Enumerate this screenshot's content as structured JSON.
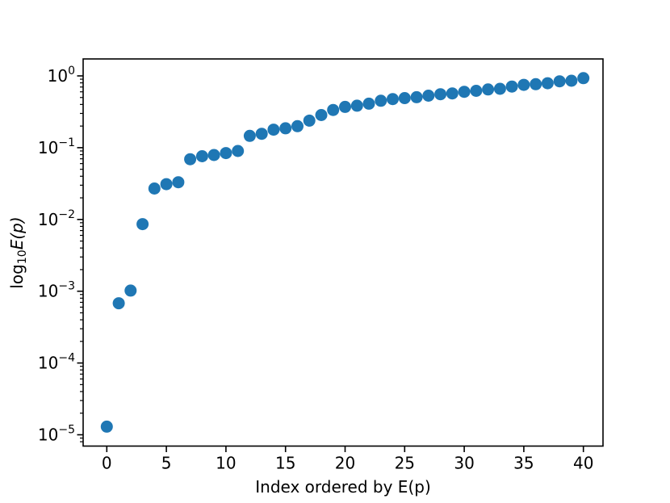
{
  "figure": {
    "background": "#ffffff"
  },
  "chart_data": {
    "type": "scatter",
    "title": "",
    "xlabel": "Index ordered by E(p)",
    "ylabel": {
      "prefix": "log",
      "subscript": "10",
      "math": "E(p)"
    },
    "legend": null,
    "grid": false,
    "marker_color": "#1f77b4",
    "axis_color": "#000000",
    "x_scale": "linear",
    "y_scale": "log",
    "xlim": [
      -2,
      41.65
    ],
    "ylim": [
      7e-06,
      1.72
    ],
    "x_ticks": [
      0,
      5,
      10,
      15,
      20,
      25,
      30,
      35,
      40
    ],
    "x_tick_labels": [
      "0",
      "5",
      "10",
      "15",
      "20",
      "25",
      "30",
      "35",
      "40"
    ],
    "y_tick_base": "10",
    "y_tick_exponents": [
      "0",
      "−1",
      "−2",
      "−3",
      "−4",
      "−5"
    ],
    "y_tick_values": [
      1,
      0.1,
      0.01,
      0.001,
      0.0001,
      1e-05
    ],
    "points": {
      "x": [
        0,
        1,
        2,
        3,
        4,
        5,
        6,
        7,
        8,
        9,
        10,
        11,
        12,
        13,
        14,
        15,
        16,
        17,
        18,
        19,
        20,
        21,
        22,
        23,
        24,
        25,
        26,
        27,
        28,
        29,
        30,
        31,
        32,
        33,
        34,
        35,
        36,
        37,
        38,
        39,
        40
      ],
      "y": [
        1.3e-05,
        0.00068,
        0.00102,
        0.0086,
        0.027,
        0.031,
        0.033,
        0.069,
        0.076,
        0.079,
        0.084,
        0.09,
        0.146,
        0.156,
        0.178,
        0.186,
        0.199,
        0.238,
        0.285,
        0.335,
        0.37,
        0.385,
        0.41,
        0.45,
        0.475,
        0.49,
        0.505,
        0.53,
        0.555,
        0.57,
        0.6,
        0.62,
        0.648,
        0.66,
        0.71,
        0.75,
        0.765,
        0.79,
        0.84,
        0.855,
        0.93
      ]
    }
  }
}
